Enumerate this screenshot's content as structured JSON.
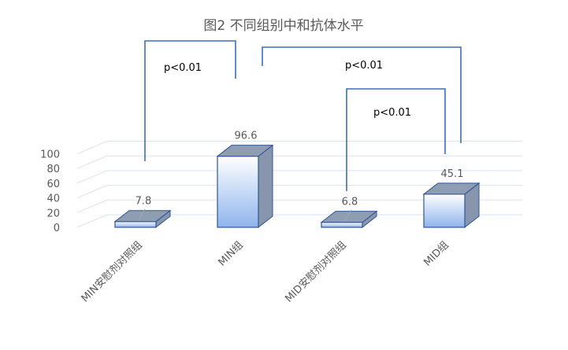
{
  "chart_data": {
    "type": "bar",
    "title": "图2 不同组别中和抗体水平",
    "categories": [
      "MIN安慰剂对照组",
      "MIN组",
      "MID安慰剂对照组",
      "MID组"
    ],
    "values": [
      7.8,
      96.6,
      6.8,
      45.1
    ],
    "value_labels": [
      "7.8",
      "96.6",
      "6.8",
      "45.1"
    ],
    "y_ticks": [
      "0",
      "20",
      "40",
      "60",
      "80",
      "100"
    ],
    "ylim": [
      0,
      120
    ],
    "grid": true,
    "style": "3d-column",
    "colors": {
      "bar_top": "#ffffff",
      "bar_bottom": "#8fb4ec",
      "bar_side": "#8896ad",
      "bar_cap": "#8f9db3",
      "bar_edge": "#2f5597",
      "bracket": "#3b6fb6",
      "grid": "#d9e2f0"
    },
    "annotations": [
      {
        "text": "p<0.01",
        "from": 0,
        "to": 1
      },
      {
        "text": "p<0.01",
        "from": 1,
        "to": 3
      },
      {
        "text": "p<0.01",
        "from": 2,
        "to": 3
      }
    ]
  }
}
